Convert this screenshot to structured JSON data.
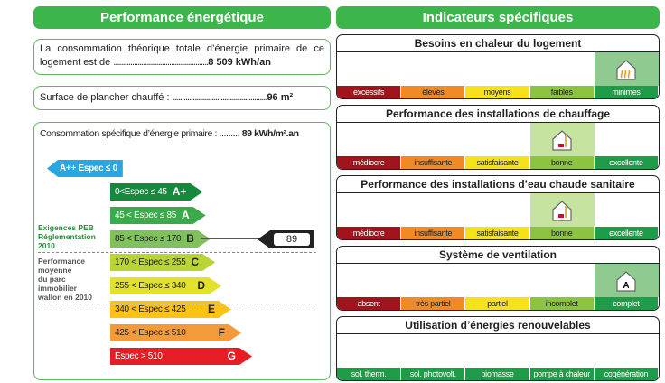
{
  "left": {
    "title": "Performance énergétique",
    "total_line1": "La consommation théorique totale d’énergie primaire de ce",
    "total_line2": "logement est de ",
    "total_dots": "...................................................",
    "total_value": "8 509 kWh/an",
    "surface_label": "Surface de plancher chauffé : ",
    "surface_dots": "...................................................",
    "surface_value": "96 m²",
    "spec_label": "Consommation spécifique d’énergie primaire : ......... ",
    "spec_value": "89 kWh/m².an",
    "peb_label_1": "Exigences PEB",
    "peb_label_2": "Réglementation 2010",
    "avg_label_1": "Performance moyenne",
    "avg_label_2": "du parc immobilier",
    "avg_label_3": "wallon en 2010",
    "marker_value": "89",
    "classes": [
      {
        "range": "A++ Espec ≤ 0",
        "letter": "",
        "color": "#2aa7e0"
      },
      {
        "range": "0<Espec ≤ 45",
        "letter": "A+",
        "color": "#17893f"
      },
      {
        "range": "45 < Espec ≤ 85",
        "letter": "A",
        "color": "#3aaa4a"
      },
      {
        "range": "85 < Espec ≤ 170",
        "letter": "B",
        "color": "#7fc15a"
      },
      {
        "range": "170 < Espec ≤ 255",
        "letter": "C",
        "color": "#b9d535"
      },
      {
        "range": "255 < Espec ≤ 340",
        "letter": "D",
        "color": "#e2e22a"
      },
      {
        "range": "340 < Espec ≤ 425",
        "letter": "E",
        "color": "#fcc214"
      },
      {
        "range": "425 < Espec ≤ 510",
        "letter": "F",
        "color": "#f39a3a"
      },
      {
        "range": "Espec > 510",
        "letter": "G",
        "color": "#e51e25"
      }
    ]
  },
  "right": {
    "title": "Indicateurs spécifiques",
    "sections": [
      {
        "title": "Besoins en chaleur du logement",
        "scale": [
          "excessifs",
          "élevés",
          "moyens",
          "faibles",
          "minimes"
        ],
        "selected": 4,
        "icon": "house-heat-icon"
      },
      {
        "title": "Performance des installations de chauffage",
        "scale": [
          "médiocre",
          "insuffisante",
          "satisfaisante",
          "bonne",
          "excellente"
        ],
        "selected": 3,
        "icon": "house-boiler-icon"
      },
      {
        "title": "Performance des installations d’eau chaude sanitaire",
        "scale": [
          "médiocre",
          "insuffisante",
          "satisfaisante",
          "bonne",
          "excellente"
        ],
        "selected": 3,
        "icon": "house-water-heater-icon"
      },
      {
        "title": "Système de ventilation",
        "scale": [
          "absent",
          "très partiel",
          "partiel",
          "incomplet",
          "complet"
        ],
        "selected": 4,
        "icon": "house-ventilation-icon",
        "icon_text": "A"
      },
      {
        "title": "Utilisation d’énergies renouvelables",
        "scale": [
          "sol. therm.",
          "sol. photovolt.",
          "biomasse",
          "pompe à chaleur",
          "cogénération"
        ],
        "selected": -1
      }
    ]
  },
  "scale_colors": [
    "#a0141e",
    "#f08a24",
    "#f5e21a",
    "#8cc43f",
    "#1f9c4a"
  ],
  "renew_color": "#1f9c4a"
}
